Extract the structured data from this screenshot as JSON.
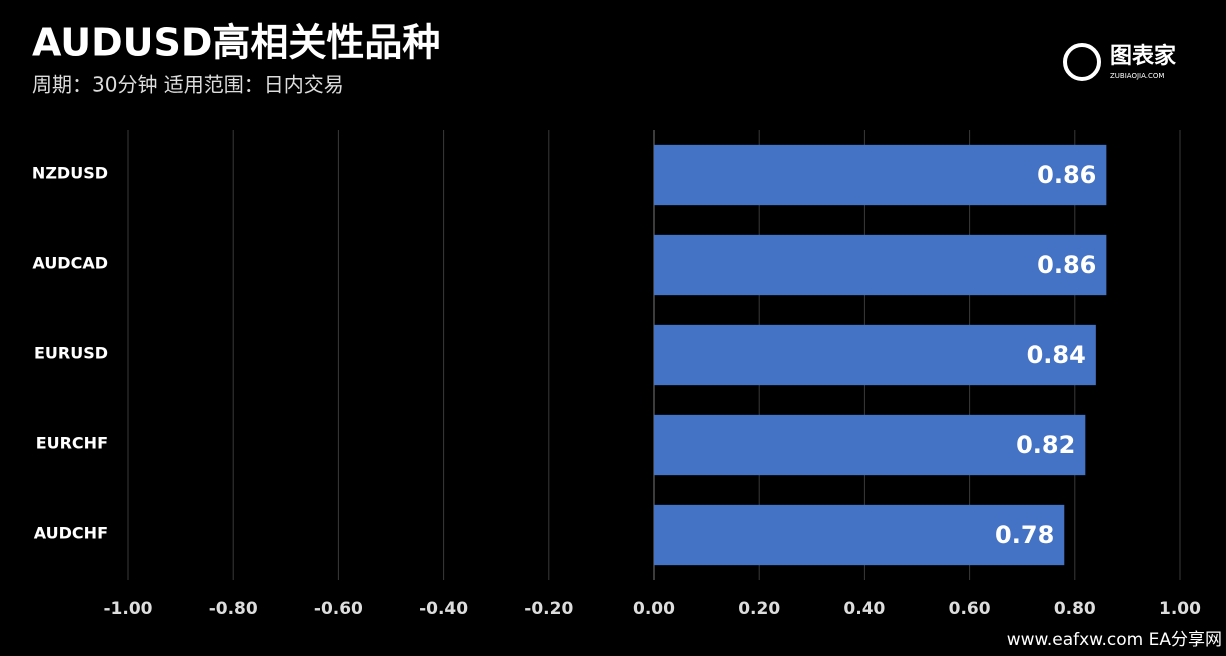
{
  "chart_data": {
    "type": "barh",
    "title": "AUDUSD高相关性品种",
    "subtitle": "周期：30分钟  适用范围：日内交易",
    "logo": "图表家",
    "logo_sub": "ZUBIAOJIA.COM",
    "watermark": "www.eafxw.com  EA分享网",
    "categories": [
      "NZDUSD",
      "AUDCAD",
      "EURUSD",
      "EURCHF",
      "AUDCHF"
    ],
    "values": [
      0.86,
      0.86,
      0.84,
      0.82,
      0.78
    ],
    "color": "#4472c4",
    "xlim": [
      -1,
      1
    ],
    "xticks": [
      {
        "value": -1,
        "label": "-1.00"
      },
      {
        "value": -0.8,
        "label": "-0.80"
      },
      {
        "value": -0.6,
        "label": "-0.60"
      },
      {
        "value": -0.4,
        "label": "-0.40"
      },
      {
        "value": -0.2,
        "label": "-0.20"
      },
      {
        "value": 0,
        "label": "0.00"
      },
      {
        "value": 0.2,
        "label": "0.20"
      },
      {
        "value": 0.4,
        "label": "0.40"
      },
      {
        "value": 0.6,
        "label": "0.60"
      },
      {
        "value": 0.8,
        "label": "0.80"
      },
      {
        "value": 1,
        "label": "1.00"
      }
    ],
    "grid": true
  }
}
